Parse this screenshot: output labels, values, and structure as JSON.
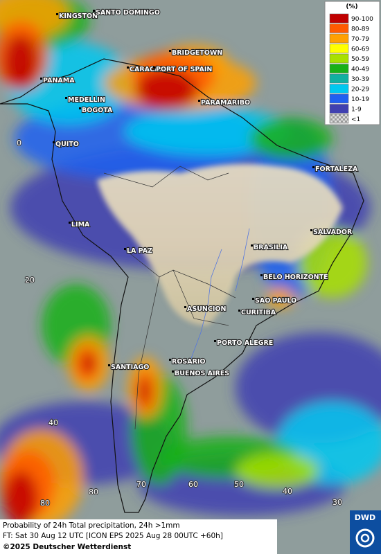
{
  "legend": {
    "title": "(%)",
    "items": [
      {
        "label": "90-100",
        "color": "#c00000"
      },
      {
        "label": "80-89",
        "color": "#ff5a00"
      },
      {
        "label": "70-79",
        "color": "#ffa000"
      },
      {
        "label": "60-69",
        "color": "#ffff00"
      },
      {
        "label": "50-59",
        "color": "#a8e000"
      },
      {
        "label": "40-49",
        "color": "#18b018"
      },
      {
        "label": "30-39",
        "color": "#10b0a0"
      },
      {
        "label": "20-29",
        "color": "#00c8f0"
      },
      {
        "label": "10-19",
        "color": "#2060f0"
      },
      {
        "label": "1-9",
        "color": "#4040b0"
      },
      {
        "label": "<1",
        "color": "checker"
      }
    ]
  },
  "cities": [
    "KINGSTON",
    "SANTO DOMINGO",
    "BRIDGETOWN",
    "CARACAS",
    "PORT OF SPAIN",
    "PANAMA",
    "MEDELLIN",
    "BOGOTA",
    "PARAMARIBO",
    "QUITO",
    "FORTALEZA",
    "LIMA",
    "SALVADOR",
    "LA PAZ",
    "BRASILIA",
    "BELO HORIZONTE",
    "SAO PAULO",
    "ASUNCION",
    "CURITIBA",
    "PORTO ALEGRE",
    "ROSARIO",
    "SANTIAGO",
    "BUENOS AIRES"
  ],
  "grid_labels": [
    "0",
    "20",
    "40",
    "80",
    "70",
    "60",
    "50",
    "40",
    "30",
    "80"
  ],
  "footer": {
    "line1": "Probability of 24h Total precipitation, 24h >1mm",
    "line2": "FT: Sat 30 Aug 12 UTC [ICON EPS 2025 Aug 28 00UTC +60h]",
    "line3": "©2025 Deutscher Wetterdienst"
  },
  "logo": "DWD"
}
